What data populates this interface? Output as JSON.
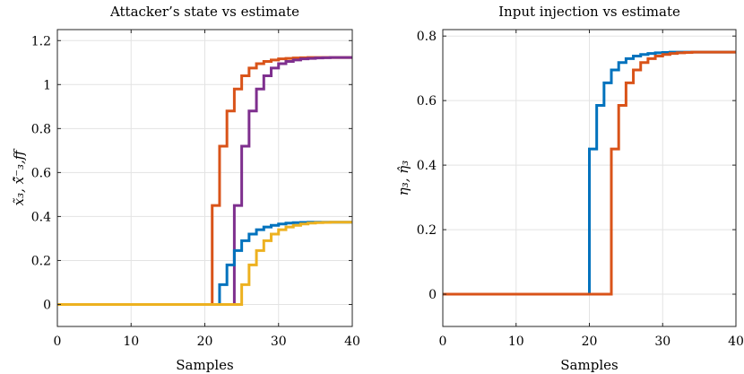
{
  "colors": {
    "blue": "#0072BD",
    "orange": "#D95319",
    "yellow": "#EDB120",
    "purple": "#7E2F8E"
  },
  "chart_data": [
    {
      "type": "line",
      "step": true,
      "title": "Attacker’s state vs estimate",
      "xlabel": "Samples",
      "ylabel": "x̃₃, x̃̂⁻₃,ff",
      "xlim": [
        0,
        40
      ],
      "ylim": [
        -0.1,
        1.25
      ],
      "xticks": [
        0,
        10,
        20,
        30,
        40
      ],
      "yticks": [
        0,
        0.2,
        0.4,
        0.6,
        0.8,
        1,
        1.2
      ],
      "ytick_labels": [
        "0",
        "0.2",
        "0.4",
        "0.6",
        "0.8",
        "1",
        "1.2"
      ],
      "grid": true,
      "series": [
        {
          "name": "orange",
          "color": "#D95319",
          "x": [
            0,
            21,
            22,
            23,
            24,
            25,
            26,
            27,
            28,
            29,
            30,
            31,
            32,
            33,
            34,
            35,
            36,
            37,
            38,
            39,
            40
          ],
          "y": [
            0,
            0.45,
            0.72,
            0.88,
            0.98,
            1.04,
            1.075,
            1.095,
            1.105,
            1.112,
            1.117,
            1.119,
            1.121,
            1.122,
            1.123,
            1.123,
            1.123,
            1.123,
            1.123,
            1.123,
            1.123
          ]
        },
        {
          "name": "purple",
          "color": "#7E2F8E",
          "x": [
            0,
            24,
            25,
            26,
            27,
            28,
            29,
            30,
            31,
            32,
            33,
            34,
            35,
            36,
            37,
            38,
            39,
            40
          ],
          "y": [
            0,
            0.45,
            0.72,
            0.88,
            0.98,
            1.04,
            1.075,
            1.095,
            1.105,
            1.112,
            1.117,
            1.119,
            1.121,
            1.122,
            1.123,
            1.123,
            1.123,
            1.123
          ]
        },
        {
          "name": "blue",
          "color": "#0072BD",
          "x": [
            0,
            22,
            23,
            24,
            25,
            26,
            27,
            28,
            29,
            30,
            31,
            32,
            33,
            34,
            35,
            36,
            37,
            38,
            39,
            40
          ],
          "y": [
            0,
            0.09,
            0.18,
            0.245,
            0.29,
            0.32,
            0.34,
            0.352,
            0.36,
            0.366,
            0.37,
            0.372,
            0.373,
            0.374,
            0.374,
            0.374,
            0.374,
            0.374,
            0.374,
            0.374
          ]
        },
        {
          "name": "yellow",
          "color": "#EDB120",
          "x": [
            0,
            25,
            26,
            27,
            28,
            29,
            30,
            31,
            32,
            33,
            34,
            35,
            36,
            37,
            38,
            39,
            40
          ],
          "y": [
            0,
            0.09,
            0.18,
            0.245,
            0.29,
            0.32,
            0.34,
            0.352,
            0.36,
            0.366,
            0.37,
            0.372,
            0.373,
            0.374,
            0.374,
            0.374,
            0.374
          ]
        }
      ]
    },
    {
      "type": "line",
      "step": true,
      "title": "Input injection vs estimate",
      "xlabel": "Samples",
      "ylabel": "η₃, η̂₃",
      "xlim": [
        0,
        40
      ],
      "ylim": [
        -0.1,
        0.82
      ],
      "xticks": [
        0,
        10,
        20,
        30,
        40
      ],
      "yticks": [
        0,
        0.2,
        0.4,
        0.6,
        0.8
      ],
      "ytick_labels": [
        "0",
        "0.2",
        "0.4",
        "0.6",
        "0.8"
      ],
      "grid": true,
      "series": [
        {
          "name": "blue",
          "color": "#0072BD",
          "x": [
            0,
            20,
            21,
            22,
            23,
            24,
            25,
            26,
            27,
            28,
            29,
            30,
            31,
            32,
            33,
            34,
            35,
            36,
            37,
            38,
            39,
            40
          ],
          "y": [
            0,
            0.45,
            0.585,
            0.655,
            0.695,
            0.718,
            0.73,
            0.738,
            0.743,
            0.746,
            0.748,
            0.749,
            0.75,
            0.75,
            0.75,
            0.75,
            0.75,
            0.75,
            0.75,
            0.75,
            0.75,
            0.75
          ]
        },
        {
          "name": "orange",
          "color": "#D95319",
          "x": [
            0,
            23,
            24,
            25,
            26,
            27,
            28,
            29,
            30,
            31,
            32,
            33,
            34,
            35,
            36,
            37,
            38,
            39,
            40
          ],
          "y": [
            0,
            0.45,
            0.585,
            0.655,
            0.695,
            0.718,
            0.73,
            0.738,
            0.743,
            0.746,
            0.748,
            0.749,
            0.75,
            0.75,
            0.75,
            0.75,
            0.75,
            0.75,
            0.75
          ]
        }
      ]
    }
  ]
}
